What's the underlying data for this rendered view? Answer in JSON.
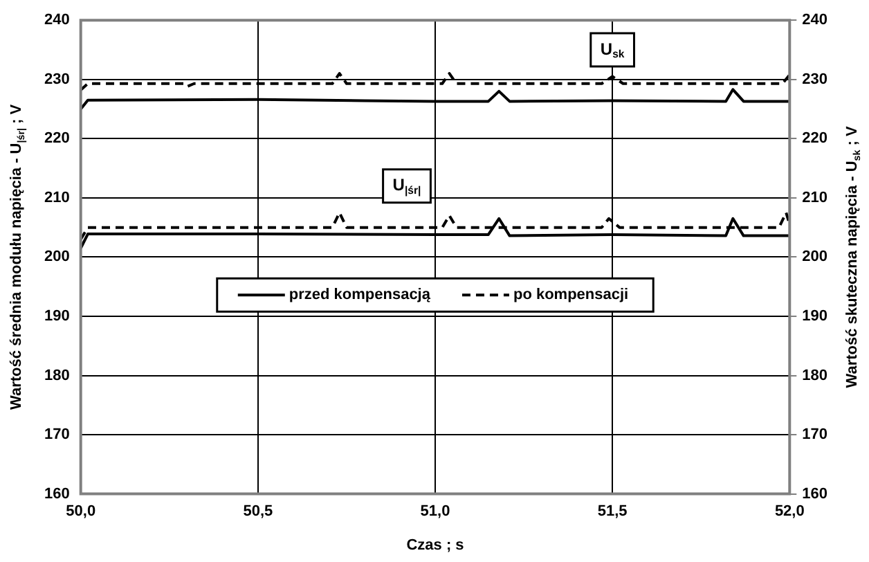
{
  "chart_data": {
    "type": "line",
    "xlabel": "Czas ; s",
    "ylabel": "Wartość średnia modułu napięcia - U$_{|śr|}$ ; V",
    "y2label": "Wartość skuteczna napięcia - U$_{sk}$ ; V",
    "xlim": [
      50,
      52
    ],
    "xticks": [
      {
        "value": 50,
        "label": "50,0"
      },
      {
        "value": 50.5,
        "label": "50,5"
      },
      {
        "value": 51,
        "label": "51,0"
      },
      {
        "value": 51.5,
        "label": "51,5"
      },
      {
        "value": 52,
        "label": "52,0"
      }
    ],
    "ylim": [
      160,
      240
    ],
    "yticks": [
      160,
      170,
      180,
      190,
      200,
      210,
      220,
      230,
      240
    ],
    "y2lim": [
      160,
      240
    ],
    "y2ticks": [
      160,
      170,
      180,
      190,
      200,
      210,
      220,
      230,
      240
    ],
    "grid": true,
    "legend": "center",
    "marker": "none",
    "annotations": [
      {
        "text": "U$_{sk}$",
        "x": 51.5,
        "y": 235
      },
      {
        "text": "U$_{|śr|}$",
        "x": 50.92,
        "y": 212
      }
    ],
    "series": [
      {
        "name": "przed kompensacją",
        "color": "#000000",
        "line_style": "solid",
        "axis": "y2",
        "x": [
          50,
          50.02,
          50.5,
          50.8,
          51,
          51.15,
          51.18,
          51.21,
          51.5,
          51.82,
          51.84,
          51.87,
          52
        ],
        "values": [
          225,
          226.5,
          226.6,
          226.4,
          226.3,
          226.3,
          228,
          226.3,
          226.4,
          226.3,
          228.3,
          226.3,
          226.3
        ]
      },
      {
        "name": "po kompensacji",
        "color": "#000000",
        "line_style": "dashed",
        "axis": "y2",
        "x": [
          50,
          50.02,
          50.29,
          50.3,
          50.32,
          50.71,
          50.73,
          50.75,
          51.02,
          51.04,
          51.06,
          51.47,
          51.5,
          51.53,
          51.98,
          52
        ],
        "values": [
          228.2,
          229.3,
          229.3,
          228.8,
          229.3,
          229.3,
          231,
          229.3,
          229.3,
          231,
          229.3,
          229.3,
          230.5,
          229.3,
          229.3,
          230.8
        ]
      },
      {
        "color": "#000000",
        "line_style": "solid",
        "x": [
          50,
          50.02,
          50.5,
          51,
          51.15,
          51.18,
          51.21,
          51.5,
          51.82,
          51.84,
          51.87,
          52
        ],
        "values": [
          201.5,
          203.9,
          203.9,
          203.8,
          203.8,
          206.5,
          203.6,
          203.8,
          203.6,
          206.5,
          203.6,
          203.6
        ]
      },
      {
        "color": "#000000",
        "line_style": "dashed",
        "x": [
          50,
          50.02,
          50.71,
          50.73,
          50.75,
          51.02,
          51.04,
          51.06,
          51.47,
          51.49,
          51.52,
          51.97,
          51.99,
          52
        ],
        "values": [
          203,
          205,
          205,
          207.5,
          205,
          205,
          207,
          205,
          205,
          206.5,
          205,
          205,
          207.5,
          205.5
        ]
      }
    ]
  }
}
